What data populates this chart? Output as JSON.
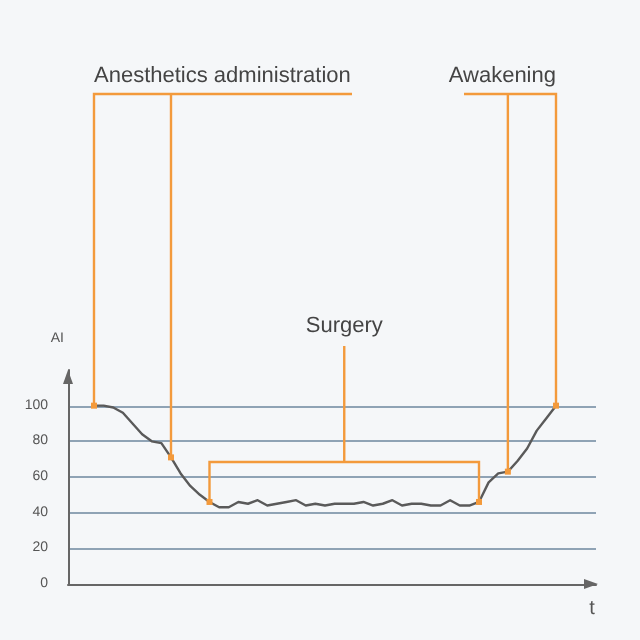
{
  "chart_data": {
    "type": "line",
    "ylabel": "AI",
    "xlabel": "t",
    "categories": [
      null,
      null,
      null,
      null,
      null,
      null,
      null,
      null,
      null,
      null,
      null,
      null,
      null,
      null,
      null,
      null,
      null,
      null,
      null,
      null,
      null,
      null,
      null,
      null,
      null,
      null,
      null,
      null,
      null,
      null,
      null,
      null,
      null,
      null,
      null,
      null,
      null,
      null,
      null,
      null,
      null,
      null,
      null,
      null,
      null,
      null,
      null,
      null,
      null
    ],
    "series": [
      {
        "color": "#5a5a5a",
        "values": [
          100,
          100,
          99,
          96,
          90,
          84,
          80,
          79,
          71,
          62,
          55,
          50,
          46,
          43,
          43,
          46,
          45,
          47,
          44,
          45,
          46,
          47,
          44,
          45,
          44,
          45,
          45,
          45,
          46,
          44,
          45,
          47,
          44,
          45,
          45,
          44,
          44,
          47,
          44,
          44,
          46,
          57,
          62,
          63,
          69,
          76,
          86,
          93,
          100
        ]
      }
    ],
    "ylim": [
      0,
      120
    ],
    "yticks": [
      0,
      20,
      40,
      60,
      80,
      100
    ],
    "grid": "y",
    "marker": "none",
    "line_style": "solid",
    "tick_labels": "y",
    "annotations": [
      "Anesthetics administration",
      "Surgery",
      "Awakening"
    ]
  }
}
